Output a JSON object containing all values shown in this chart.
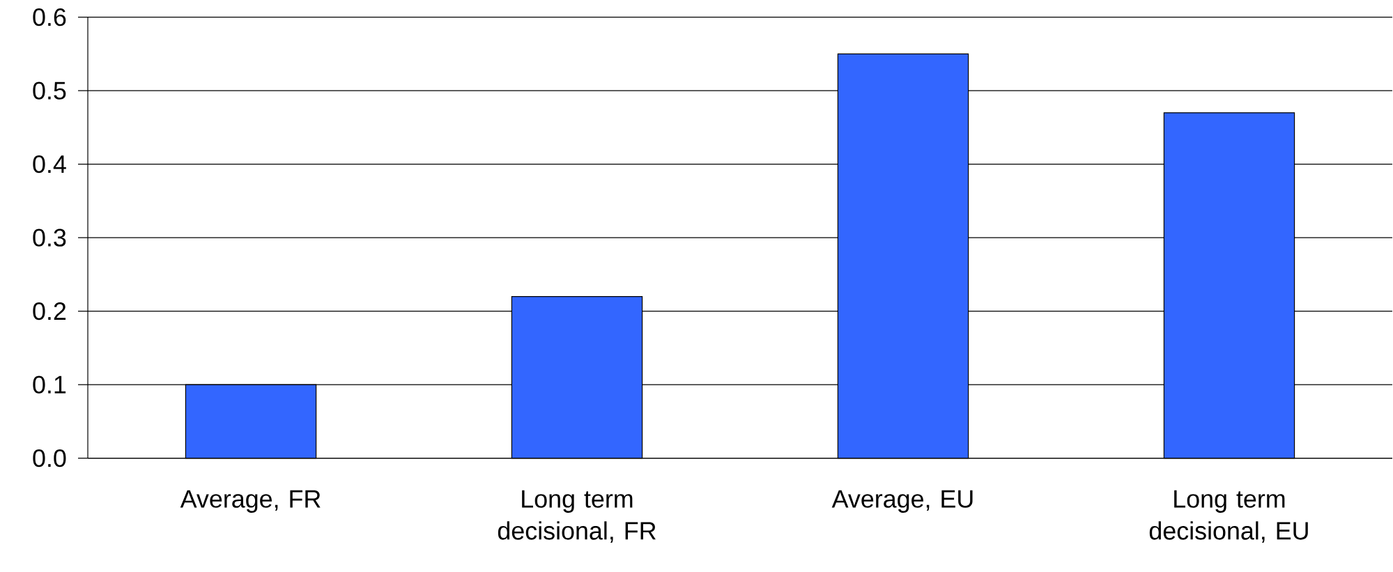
{
  "chart_data": {
    "type": "bar",
    "categories": [
      "Average, FR",
      "Long term decisional, FR",
      "Average, EU",
      "Long term decisional, EU"
    ],
    "values": [
      0.1,
      0.22,
      0.55,
      0.47
    ],
    "color": "#3366ff",
    "ylim": [
      0,
      0.6
    ],
    "yticks": [
      {
        "value": 0,
        "label": "0.0"
      },
      {
        "value": 0.1,
        "label": "0.1"
      },
      {
        "value": 0.2,
        "label": "0.2"
      },
      {
        "value": 0.3,
        "label": "0.3"
      },
      {
        "value": 0.4,
        "label": "0.4"
      },
      {
        "value": 0.5,
        "label": "0.5"
      },
      {
        "value": 0.6,
        "label": "0.6"
      }
    ],
    "grid": "y"
  }
}
